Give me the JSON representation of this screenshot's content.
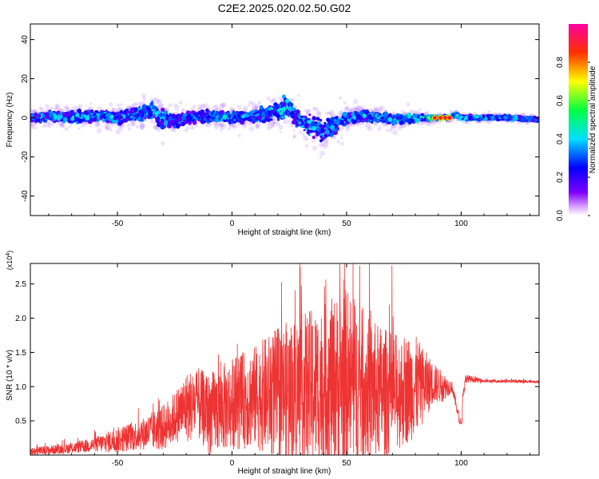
{
  "title": "C2E2.2025.020.02.50.G02",
  "colors": {
    "snr_line": "#ee3333",
    "axis": "#000000",
    "background": "#ffffff"
  },
  "chart_data": [
    {
      "type": "heatmap",
      "title": "C2E2.2025.020.02.50.G02",
      "xlabel": "Height of straight line (km)",
      "ylabel": "Frequency (Hz)",
      "xlim": [
        -88,
        134
      ],
      "ylim": [
        -50,
        48
      ],
      "x_ticks": [
        "-50",
        "0",
        "50",
        "100"
      ],
      "y_ticks": [
        "-40",
        "-20",
        "0",
        "20",
        "40"
      ],
      "colorbar": {
        "label": "Normalized spectral amplitude",
        "range": [
          0,
          1
        ],
        "ticks": [
          "0.0",
          "0.2",
          "0.4",
          "0.6",
          "0.8"
        ],
        "colormap": "rainbow (violet-blue-cyan-green-yellow-red-magenta)"
      },
      "series": [
        {
          "x": [
            -88,
            -80,
            -70,
            -60,
            -50,
            -40,
            -35,
            -30,
            -25,
            -20,
            -10,
            0,
            10,
            20,
            24,
            28,
            35,
            40,
            50,
            60,
            70,
            80,
            85,
            90,
            95,
            98,
            100,
            110,
            120,
            134
          ],
          "values": [
            0,
            1,
            0,
            1,
            0,
            2,
            4,
            -1,
            -2,
            0,
            1,
            0,
            1,
            3,
            6,
            0,
            -5,
            -7,
            0,
            1,
            -1,
            0,
            0,
            0,
            0,
            2,
            0,
            0,
            0,
            -1
          ],
          "spread_hz": [
            7,
            8,
            9,
            9,
            10,
            12,
            14,
            16,
            12,
            10,
            9,
            9,
            10,
            14,
            17,
            15,
            18,
            18,
            11,
            9,
            8,
            7,
            5,
            3,
            3,
            4,
            3,
            3,
            3,
            3
          ],
          "peak_amplitude": [
            0.45,
            0.45,
            0.45,
            0.45,
            0.45,
            0.45,
            0.45,
            0.45,
            0.4,
            0.4,
            0.45,
            0.45,
            0.45,
            0.45,
            0.5,
            0.45,
            0.45,
            0.4,
            0.45,
            0.45,
            0.5,
            0.55,
            0.6,
            0.85,
            0.75,
            0.55,
            0.5,
            0.5,
            0.45,
            0.45
          ]
        }
      ]
    },
    {
      "type": "line",
      "xlabel": "Height of straight line (km)",
      "ylabel": "SNR (10 * v/v)",
      "y_multiplier": "(x10^4)",
      "xlim": [
        -88,
        134
      ],
      "ylim": [
        0,
        2.8
      ],
      "x_ticks": [
        "-50",
        "0",
        "50",
        "100"
      ],
      "y_ticks": [
        "0.5",
        "1.0",
        "1.5",
        "2.0",
        "2.5"
      ],
      "series": [
        {
          "x": [
            -88,
            -70,
            -60,
            -50,
            -40,
            -30,
            -25,
            -22,
            -20,
            -15,
            -10,
            0,
            10,
            20,
            30,
            40,
            45,
            50,
            55,
            60,
            70,
            80,
            88,
            92,
            96,
            99,
            100,
            101,
            102,
            110,
            120,
            134
          ],
          "values": [
            0.05,
            0.1,
            0.15,
            0.22,
            0.3,
            0.4,
            0.55,
            0.65,
            0.7,
            0.75,
            0.6,
            0.75,
            0.85,
            0.9,
            0.95,
            1.0,
            1.05,
            1.1,
            1.0,
            0.95,
            0.9,
            1.0,
            1.05,
            1.0,
            1.0,
            0.55,
            0.45,
            0.95,
            1.12,
            1.08,
            1.08,
            1.07
          ],
          "amplitude": [
            0.08,
            0.1,
            0.15,
            0.25,
            0.3,
            0.45,
            0.5,
            0.6,
            0.7,
            0.7,
            0.8,
            0.9,
            1.0,
            1.3,
            1.5,
            1.6,
            1.7,
            1.8,
            1.6,
            1.4,
            1.2,
            1.0,
            0.4,
            0.3,
            0.1,
            0.1,
            0.1,
            0.2,
            0.08,
            0.03,
            0.03,
            0.03
          ],
          "max": 2.8
        }
      ]
    }
  ]
}
